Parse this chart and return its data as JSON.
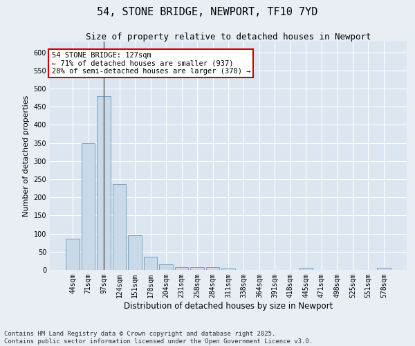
{
  "title": "54, STONE BRIDGE, NEWPORT, TF10 7YD",
  "subtitle": "Size of property relative to detached houses in Newport",
  "xlabel": "Distribution of detached houses by size in Newport",
  "ylabel": "Number of detached properties",
  "categories": [
    "44sqm",
    "71sqm",
    "97sqm",
    "124sqm",
    "151sqm",
    "178sqm",
    "204sqm",
    "231sqm",
    "258sqm",
    "284sqm",
    "311sqm",
    "338sqm",
    "364sqm",
    "391sqm",
    "418sqm",
    "445sqm",
    "471sqm",
    "498sqm",
    "525sqm",
    "551sqm",
    "578sqm"
  ],
  "values": [
    85,
    350,
    480,
    237,
    95,
    37,
    16,
    8,
    8,
    7,
    4,
    0,
    0,
    0,
    0,
    5,
    0,
    0,
    0,
    0,
    5
  ],
  "bar_color": "#c9d9e8",
  "bar_edge_color": "#6699bb",
  "marker_bar_index": 2,
  "annotation_text": "54 STONE BRIDGE: 127sqm\n← 71% of detached houses are smaller (937)\n28% of semi-detached houses are larger (370) →",
  "annotation_box_color": "#ffffff",
  "annotation_edge_color": "#cc0000",
  "ylim": [
    0,
    630
  ],
  "yticks": [
    0,
    50,
    100,
    150,
    200,
    250,
    300,
    350,
    400,
    450,
    500,
    550,
    600
  ],
  "background_color": "#e8eef4",
  "plot_bg_color": "#dce6f0",
  "grid_color": "#ffffff",
  "vline_color": "#555555",
  "footer_text": "Contains HM Land Registry data © Crown copyright and database right 2025.\nContains public sector information licensed under the Open Government Licence v3.0.",
  "title_fontsize": 11,
  "subtitle_fontsize": 9,
  "xlabel_fontsize": 8.5,
  "ylabel_fontsize": 8,
  "tick_fontsize": 7,
  "annotation_fontsize": 7.5,
  "footer_fontsize": 6.5
}
